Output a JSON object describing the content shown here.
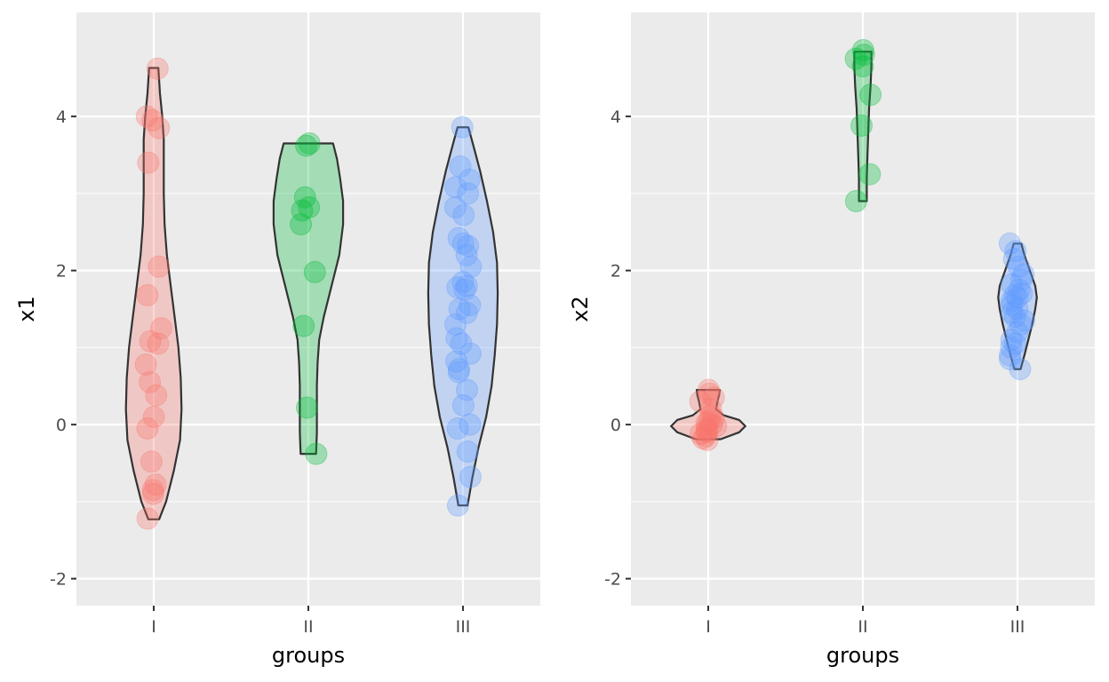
{
  "colors": {
    "panel_background": "#ebebeb",
    "grid_major": "#ffffff",
    "violin_outline": "#333333",
    "tick_text": "#4d4d4d",
    "group_I": "#F8766D",
    "group_II": "#00BA38",
    "group_III": "#619CFF"
  },
  "chart_data": [
    {
      "type": "violin",
      "xlabel": "groups",
      "ylabel": "x1",
      "categories": [
        "I",
        "II",
        "III"
      ],
      "ylim": [
        -2.35,
        5.35
      ],
      "yticks": [
        -2,
        0,
        2,
        4
      ],
      "ytick_labels": [
        "-2",
        "0",
        "2",
        "4"
      ],
      "grid": true,
      "series": [
        {
          "category": "I",
          "color": "#F8766D",
          "density_profile": [
            [
              -1.23,
              0.07
            ],
            [
              -1.0,
              0.16
            ],
            [
              -0.6,
              0.26
            ],
            [
              -0.2,
              0.34
            ],
            [
              0.2,
              0.36
            ],
            [
              0.6,
              0.35
            ],
            [
              1.0,
              0.32
            ],
            [
              1.4,
              0.27
            ],
            [
              1.8,
              0.22
            ],
            [
              2.2,
              0.17
            ],
            [
              2.6,
              0.14
            ],
            [
              3.0,
              0.13
            ],
            [
              3.4,
              0.13
            ],
            [
              3.7,
              0.13
            ],
            [
              4.0,
              0.11
            ],
            [
              4.3,
              0.08
            ],
            [
              4.63,
              0.06
            ]
          ],
          "points": [
            4.62,
            4.0,
            3.95,
            3.85,
            3.4,
            2.05,
            1.68,
            1.25,
            1.08,
            1.05,
            0.78,
            0.55,
            0.38,
            0.1,
            -0.05,
            -0.48,
            -0.78,
            -0.85,
            -0.9,
            -1.22
          ]
        },
        {
          "category": "II",
          "color": "#00BA38",
          "density_profile": [
            [
              -0.38,
              0.1
            ],
            [
              -0.1,
              0.11
            ],
            [
              0.2,
              0.11
            ],
            [
              0.5,
              0.11
            ],
            [
              0.8,
              0.12
            ],
            [
              1.1,
              0.14
            ],
            [
              1.4,
              0.2
            ],
            [
              1.8,
              0.3
            ],
            [
              2.2,
              0.4
            ],
            [
              2.6,
              0.45
            ],
            [
              2.9,
              0.45
            ],
            [
              3.2,
              0.41
            ],
            [
              3.45,
              0.37
            ],
            [
              3.65,
              0.32
            ]
          ],
          "points": [
            3.65,
            3.62,
            2.95,
            2.82,
            2.78,
            2.6,
            1.98,
            1.28,
            0.22,
            -0.38
          ]
        },
        {
          "category": "III",
          "color": "#619CFF",
          "density_profile": [
            [
              -1.05,
              0.06
            ],
            [
              -0.7,
              0.12
            ],
            [
              -0.3,
              0.2
            ],
            [
              0.1,
              0.3
            ],
            [
              0.5,
              0.37
            ],
            [
              0.9,
              0.41
            ],
            [
              1.3,
              0.44
            ],
            [
              1.7,
              0.45
            ],
            [
              2.1,
              0.44
            ],
            [
              2.5,
              0.39
            ],
            [
              2.9,
              0.31
            ],
            [
              3.3,
              0.22
            ],
            [
              3.6,
              0.14
            ],
            [
              3.86,
              0.07
            ]
          ],
          "points": [
            3.86,
            3.35,
            3.18,
            3.08,
            3.0,
            2.82,
            2.72,
            2.42,
            2.35,
            2.32,
            2.2,
            2.05,
            1.85,
            1.8,
            1.78,
            1.75,
            1.55,
            1.5,
            1.45,
            1.3,
            1.12,
            1.05,
            0.92,
            0.82,
            0.72,
            0.68,
            0.45,
            0.25,
            0.0,
            -0.05,
            -0.35,
            -0.68,
            -1.05
          ]
        }
      ]
    },
    {
      "type": "violin",
      "xlabel": "groups",
      "ylabel": "x2",
      "categories": [
        "I",
        "II",
        "III"
      ],
      "ylim": [
        -2.35,
        5.35
      ],
      "yticks": [
        -2,
        0,
        2,
        4
      ],
      "ytick_labels": [
        "-2",
        "0",
        "2",
        "4"
      ],
      "grid": true,
      "series": [
        {
          "category": "I",
          "color": "#F8766D",
          "density_profile": [
            [
              -0.19,
              0.16
            ],
            [
              -0.1,
              0.4
            ],
            [
              -0.02,
              0.48
            ],
            [
              0.06,
              0.4
            ],
            [
              0.12,
              0.2
            ],
            [
              0.2,
              0.1
            ],
            [
              0.3,
              0.12
            ],
            [
              0.38,
              0.14
            ],
            [
              0.45,
              0.15
            ]
          ],
          "points": [
            0.45,
            0.4,
            0.35,
            0.3,
            0.2,
            0.12,
            0.08,
            0.05,
            0.02,
            0.0,
            -0.02,
            -0.05,
            -0.08,
            -0.1,
            -0.12,
            -0.15,
            -0.18,
            -0.2
          ]
        },
        {
          "category": "II",
          "color": "#00BA38",
          "density_profile": [
            [
              2.9,
              0.05
            ],
            [
              3.2,
              0.05
            ],
            [
              3.5,
              0.06
            ],
            [
              3.8,
              0.07
            ],
            [
              4.1,
              0.08
            ],
            [
              4.4,
              0.1
            ],
            [
              4.65,
              0.11
            ],
            [
              4.84,
              0.11
            ]
          ],
          "points": [
            4.86,
            4.8,
            4.75,
            4.65,
            4.28,
            3.88,
            3.25,
            2.9
          ]
        },
        {
          "category": "III",
          "color": "#619CFF",
          "density_profile": [
            [
              0.72,
              0.04
            ],
            [
              0.9,
              0.09
            ],
            [
              1.1,
              0.14
            ],
            [
              1.3,
              0.19
            ],
            [
              1.5,
              0.23
            ],
            [
              1.65,
              0.25
            ],
            [
              1.8,
              0.23
            ],
            [
              2.0,
              0.16
            ],
            [
              2.2,
              0.09
            ],
            [
              2.35,
              0.05
            ]
          ],
          "points": [
            2.35,
            2.25,
            2.15,
            2.05,
            1.95,
            1.88,
            1.82,
            1.75,
            1.7,
            1.68,
            1.65,
            1.6,
            1.55,
            1.5,
            1.45,
            1.4,
            1.35,
            1.3,
            1.2,
            1.1,
            1.05,
            1.0,
            0.9,
            0.85,
            0.72
          ]
        }
      ]
    }
  ]
}
